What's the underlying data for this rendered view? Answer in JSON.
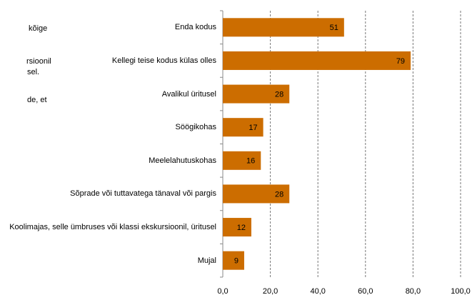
{
  "chart_data": {
    "type": "bar",
    "orientation": "horizontal",
    "annotations": [
      "kõige",
      "rsioonil",
      "sel.",
      "de, et"
    ],
    "categories": [
      "Enda kodus",
      "Kellegi teise kodus külas olles",
      "Avalikul üritusel",
      "Söögikohas",
      "Meelelahutuskohas",
      "Sõprade või tuttavatega tänaval või pargis",
      "Koolimajas, selle ümbruses või klassi ekskursioonil, üritusel",
      "Mujal"
    ],
    "values": [
      51,
      79,
      28,
      17,
      16,
      28,
      12,
      9
    ],
    "color": "#cc6d00",
    "xlim": [
      0,
      100
    ],
    "xticks": [
      {
        "value": 0,
        "label": "0,0"
      },
      {
        "value": 20,
        "label": "20,0"
      },
      {
        "value": 40,
        "label": "40,0"
      },
      {
        "value": 60,
        "label": "60,0"
      },
      {
        "value": 80,
        "label": "80,0"
      },
      {
        "value": 100,
        "label": "100,0"
      }
    ],
    "grid": true
  }
}
